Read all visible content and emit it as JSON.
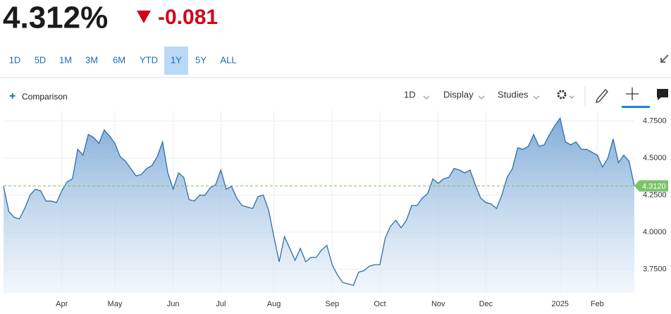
{
  "quote": {
    "price": "4.312%",
    "change": "-0.081"
  },
  "ranges": {
    "items": [
      "1D",
      "5D",
      "1M",
      "3M",
      "6M",
      "YTD",
      "1Y",
      "5Y",
      "ALL"
    ],
    "selected": 6
  },
  "toolbar": {
    "comparison": "Comparison",
    "interval": "1D",
    "display": "Display",
    "studies": "Studies"
  },
  "chart_data": {
    "type": "area",
    "categories": [
      null,
      null,
      null,
      null,
      null,
      null,
      null,
      null,
      null,
      null,
      null,
      "Apr",
      null,
      null,
      null,
      null,
      null,
      null,
      null,
      null,
      null,
      "May",
      null,
      null,
      null,
      null,
      null,
      null,
      null,
      null,
      null,
      null,
      "Jun",
      null,
      null,
      null,
      null,
      null,
      null,
      null,
      null,
      "Jul",
      null,
      null,
      null,
      null,
      null,
      null,
      null,
      null,
      null,
      "Aug",
      null,
      null,
      null,
      null,
      null,
      null,
      null,
      null,
      null,
      null,
      "Sep",
      null,
      null,
      null,
      null,
      null,
      null,
      null,
      null,
      "Oct",
      null,
      null,
      null,
      null,
      null,
      null,
      null,
      null,
      null,
      null,
      "Nov",
      null,
      null,
      null,
      null,
      null,
      null,
      null,
      null,
      "Dec",
      null,
      null,
      null,
      null,
      null,
      null,
      null,
      null,
      null,
      null,
      null,
      null,
      null,
      "2025",
      null,
      null,
      null,
      null,
      null,
      null,
      "Feb",
      null,
      null,
      null,
      null,
      null,
      null,
      null
    ],
    "series": [
      {
        "color": "#2f6eab",
        "values": [
          4.31,
          4.14,
          4.1,
          4.09,
          4.16,
          4.25,
          4.29,
          4.28,
          4.21,
          4.21,
          4.2,
          4.28,
          4.34,
          4.36,
          4.56,
          4.52,
          4.66,
          4.64,
          4.6,
          4.69,
          4.65,
          4.6,
          4.51,
          4.48,
          4.43,
          4.38,
          4.39,
          4.43,
          4.45,
          4.51,
          4.61,
          4.4,
          4.29,
          4.4,
          4.37,
          4.22,
          4.21,
          4.25,
          4.25,
          4.3,
          4.32,
          4.42,
          4.29,
          4.31,
          4.23,
          4.18,
          4.17,
          4.16,
          4.24,
          4.25,
          4.15,
          3.97,
          3.8,
          3.97,
          3.89,
          3.81,
          3.89,
          3.8,
          3.83,
          3.83,
          3.88,
          3.91,
          3.78,
          3.71,
          3.66,
          3.65,
          3.64,
          3.73,
          3.74,
          3.77,
          3.78,
          3.78,
          3.96,
          4.04,
          4.08,
          4.03,
          4.08,
          4.18,
          4.18,
          4.23,
          4.26,
          4.36,
          4.33,
          4.36,
          4.37,
          4.43,
          4.42,
          4.4,
          4.42,
          4.32,
          4.23,
          4.2,
          4.19,
          4.16,
          4.25,
          4.37,
          4.43,
          4.57,
          4.56,
          4.58,
          4.66,
          4.58,
          4.59,
          4.66,
          4.72,
          4.77,
          4.61,
          4.59,
          4.61,
          4.56,
          4.56,
          4.54,
          4.52,
          4.44,
          4.5,
          4.63,
          4.47,
          4.52,
          4.48,
          4.312
        ]
      }
    ],
    "ylim": [
      3.59,
      4.82
    ],
    "yticks": [
      {
        "value": 3.75,
        "label": "3.7500"
      },
      {
        "value": 4.0,
        "label": "4.0000"
      },
      {
        "value": 4.25,
        "label": "4.2500"
      },
      {
        "value": 4.5,
        "label": "4.5000"
      },
      {
        "value": 4.75,
        "label": "4.7500"
      }
    ],
    "reference_line": {
      "value": 4.312,
      "label": "4.3120",
      "color": "#7cc26a"
    },
    "grid": true
  }
}
